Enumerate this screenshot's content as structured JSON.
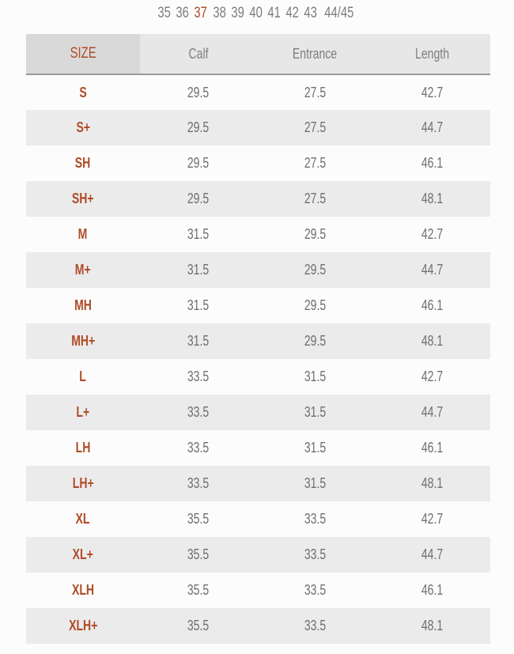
{
  "size_nav": {
    "items": [
      {
        "label": "35",
        "selected": false
      },
      {
        "label": "36",
        "selected": false
      },
      {
        "label": "37",
        "selected": true
      },
      {
        "label": "38",
        "selected": false
      },
      {
        "label": "39",
        "selected": false
      },
      {
        "label": "40",
        "selected": false
      },
      {
        "label": "41",
        "selected": false
      },
      {
        "label": "42",
        "selected": false
      },
      {
        "label": "43",
        "selected": false
      },
      {
        "label": "44/45",
        "selected": false
      }
    ]
  },
  "table": {
    "headers": [
      "SIZE",
      "Calf",
      "Entrance",
      "Length"
    ],
    "rows": [
      [
        "S",
        "29.5",
        "27.5",
        "42.7"
      ],
      [
        "S+",
        "29.5",
        "27.5",
        "44.7"
      ],
      [
        "SH",
        "29.5",
        "27.5",
        "46.1"
      ],
      [
        "SH+",
        "29.5",
        "27.5",
        "48.1"
      ],
      [
        "M",
        "31.5",
        "29.5",
        "42.7"
      ],
      [
        "M+",
        "31.5",
        "29.5",
        "44.7"
      ],
      [
        "MH",
        "31.5",
        "29.5",
        "46.1"
      ],
      [
        "MH+",
        "31.5",
        "29.5",
        "48.1"
      ],
      [
        "L",
        "33.5",
        "31.5",
        "42.7"
      ],
      [
        "L+",
        "33.5",
        "31.5",
        "44.7"
      ],
      [
        "LH",
        "33.5",
        "31.5",
        "46.1"
      ],
      [
        "LH+",
        "33.5",
        "31.5",
        "48.1"
      ],
      [
        "XL",
        "35.5",
        "33.5",
        "42.7"
      ],
      [
        "XL+",
        "35.5",
        "33.5",
        "44.7"
      ],
      [
        "XLH",
        "35.5",
        "33.5",
        "46.1"
      ],
      [
        "XLH+",
        "35.5",
        "33.5",
        "48.1"
      ]
    ]
  },
  "colors": {
    "accent": "#b04b26",
    "nav_gray": "#7d7d7d",
    "header_bg": "#e7e7e7",
    "header_first_bg": "#d9d9d9",
    "row_alt": "#ebebeb",
    "row_base": "#fcfcfc",
    "cell_text": "#6e6e6e",
    "header_line": "#9b9b9b"
  }
}
